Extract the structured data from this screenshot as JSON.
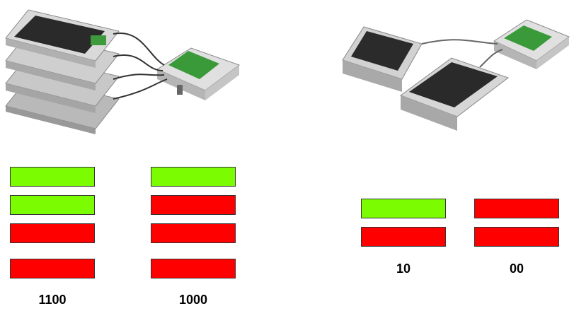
{
  "colors": {
    "on": "#7cfc00",
    "off": "#ff0000",
    "chassis": "#c8c8c8",
    "board": "#2e8b2e",
    "cable": "#333333"
  },
  "illustrations": [
    {
      "name": "stacked-four-chassis-assembly",
      "chassis_count": 4
    },
    {
      "name": "two-chassis-assembly",
      "chassis_count": 2
    }
  ],
  "groups": [
    {
      "code": "1100",
      "states": [
        "on",
        "on",
        "off",
        "off"
      ]
    },
    {
      "code": "1000",
      "states": [
        "on",
        "off",
        "off",
        "off"
      ]
    },
    {
      "code": "10",
      "states": [
        "on",
        "off"
      ]
    },
    {
      "code": "00",
      "states": [
        "off",
        "off"
      ]
    }
  ]
}
